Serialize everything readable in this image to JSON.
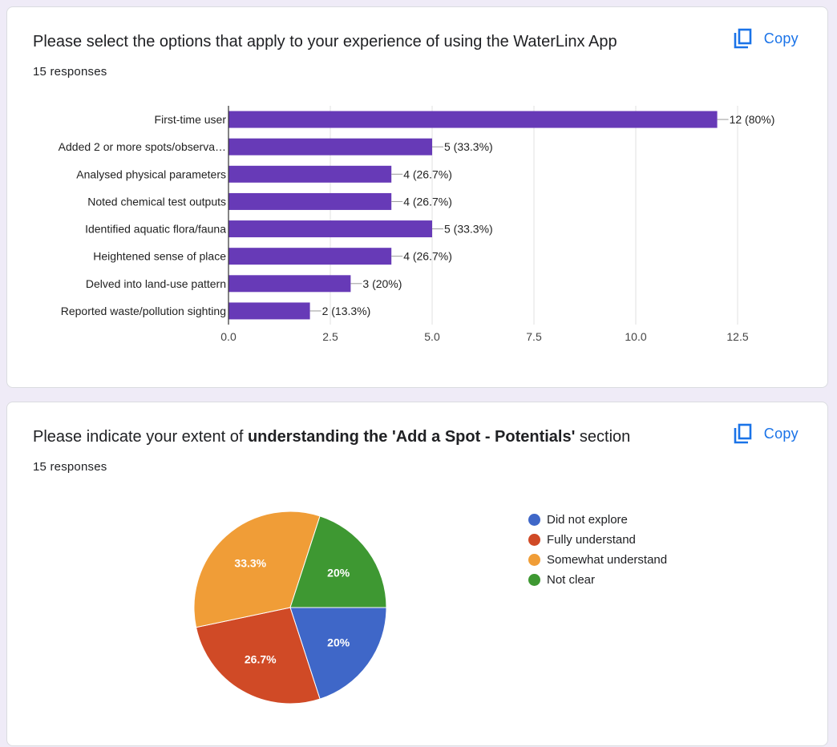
{
  "cards": [
    {
      "question": "Please select the options that apply to your experience of using the WaterLinx App",
      "responses": "15 responses",
      "copy_label": "Copy"
    },
    {
      "question_pre": "Please indicate your extent of ",
      "question_bold": "understanding the 'Add a Spot - Potentials'",
      "question_post": " section",
      "responses": "15 responses",
      "copy_label": "Copy"
    }
  ],
  "colors": {
    "bar": "#673ab7",
    "pie": [
      "#3f67c8",
      "#d04a26",
      "#f09d37",
      "#3e9832"
    ]
  },
  "chart_data": [
    {
      "type": "bar",
      "orientation": "horizontal",
      "categories": [
        "First-time user",
        "Added 2 or more spots/observa…",
        "Analysed physical parameters",
        "Noted chemical test outputs",
        "Identified aquatic flora/fauna",
        "Heightened sense of place",
        "Delved into land-use pattern",
        "Reported waste/pollution sighting"
      ],
      "values": [
        12,
        5,
        4,
        4,
        5,
        4,
        3,
        2
      ],
      "data_labels": [
        "12 (80%)",
        "5 (33.3%)",
        "4 (26.7%)",
        "4 (26.7%)",
        "5 (33.3%)",
        "4 (26.7%)",
        "3 (20%)",
        "2 (13.3%)"
      ],
      "xlim": [
        0,
        12.5
      ],
      "xticks": [
        0,
        2.5,
        5,
        7.5,
        10,
        12.5
      ],
      "xtick_labels": [
        "0.0",
        "2.5",
        "5.0",
        "7.5",
        "10.0",
        "12.5"
      ],
      "grid": true
    },
    {
      "type": "pie",
      "labels": [
        "Did not explore",
        "Fully understand",
        "Somewhat understand",
        "Not clear"
      ],
      "values": [
        20,
        26.7,
        33.3,
        20
      ],
      "slice_labels": [
        "20%",
        "26.7%",
        "33.3%",
        "20%"
      ],
      "legend_position": "right"
    }
  ]
}
